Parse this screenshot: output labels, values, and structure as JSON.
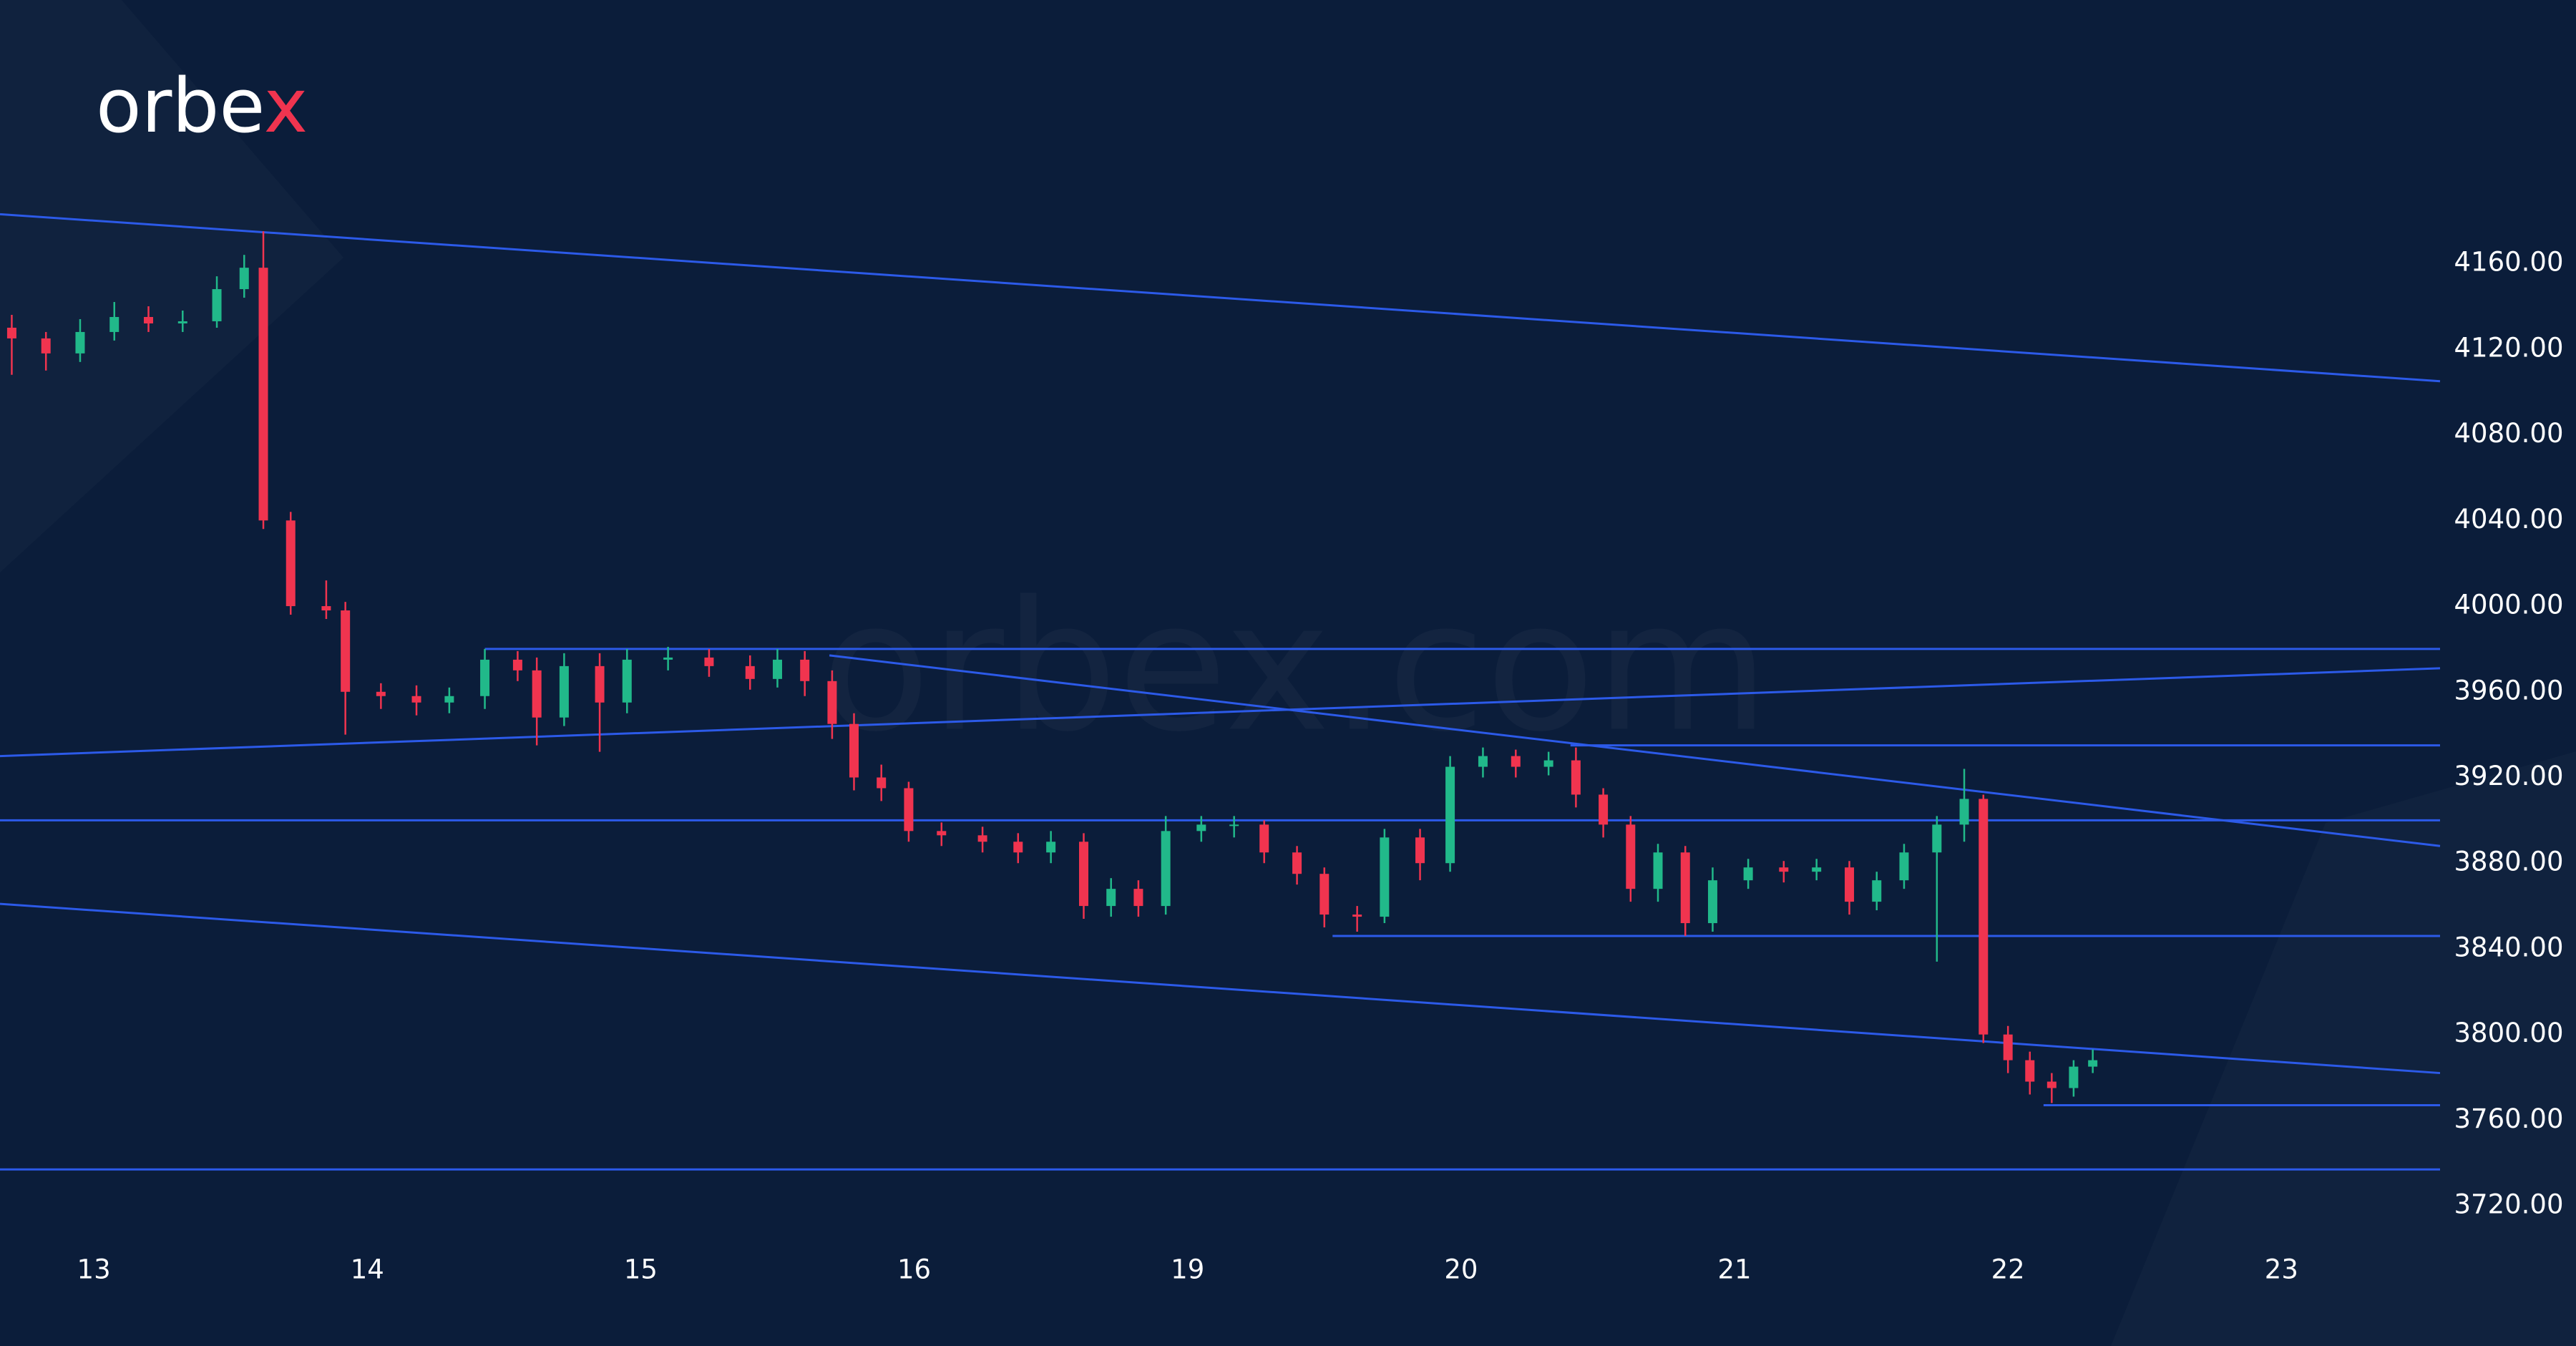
{
  "logo_main": "orbe",
  "logo_accent": "x",
  "watermark": "orbex.com",
  "chart_data": {
    "type": "candlestick",
    "up_color": "#21b98a",
    "down_color": "#f0344f",
    "line_color": "#2c5ae8",
    "xlim": [
      -0.343,
      8.58
    ],
    "ylim": [
      3700,
      4283
    ],
    "xticks": [
      {
        "value": 0,
        "label": "13"
      },
      {
        "value": 1,
        "label": "14"
      },
      {
        "value": 2,
        "label": "15"
      },
      {
        "value": 3,
        "label": "16"
      },
      {
        "value": 4,
        "label": "19"
      },
      {
        "value": 5,
        "label": "20"
      },
      {
        "value": 6,
        "label": "21"
      },
      {
        "value": 7,
        "label": "22"
      },
      {
        "value": 8,
        "label": "23"
      }
    ],
    "yticks": [
      {
        "value": 3720,
        "label": "3720.00"
      },
      {
        "value": 3760,
        "label": "3760.00"
      },
      {
        "value": 3800,
        "label": "3800.00"
      },
      {
        "value": 3840,
        "label": "3840.00"
      },
      {
        "value": 3880,
        "label": "3880.00"
      },
      {
        "value": 3920,
        "label": "3920.00"
      },
      {
        "value": 3960,
        "label": "3960.00"
      },
      {
        "value": 4000,
        "label": "4000.00"
      },
      {
        "value": 4040,
        "label": "4040.00"
      },
      {
        "value": 4080,
        "label": "4080.00"
      },
      {
        "value": 4120,
        "label": "4120.00"
      },
      {
        "value": 4160,
        "label": "4160.00"
      }
    ],
    "x": [
      -0.3,
      -0.175,
      -0.05,
      0.075,
      0.2,
      0.325,
      0.45,
      0.55,
      0.62,
      0.72,
      0.85,
      0.92,
      1.05,
      1.18,
      1.3,
      1.43,
      1.55,
      1.62,
      1.72,
      1.85,
      1.95,
      2.1,
      2.25,
      2.4,
      2.5,
      2.6,
      2.7,
      2.78,
      2.88,
      2.98,
      3.1,
      3.25,
      3.38,
      3.5,
      3.62,
      3.72,
      3.82,
      3.92,
      4.05,
      4.17,
      4.28,
      4.4,
      4.5,
      4.62,
      4.72,
      4.85,
      4.96,
      5.08,
      5.2,
      5.32,
      5.42,
      5.52,
      5.62,
      5.72,
      5.82,
      5.92,
      6.05,
      6.18,
      6.3,
      6.42,
      6.52,
      6.62,
      6.74,
      6.84,
      6.91,
      7.0,
      7.08,
      7.16,
      7.24,
      7.31
    ],
    "open": [
      4130,
      4125,
      4118,
      4128,
      4135,
      4132,
      4133,
      4148,
      4158,
      4040,
      4000,
      3998,
      3960,
      3958,
      3955,
      3958,
      3975,
      3970,
      3948,
      3972,
      3955,
      3975,
      3976,
      3972,
      3966,
      3975,
      3965,
      3945,
      3920,
      3915,
      3895,
      3893,
      3890,
      3885,
      3890,
      3860,
      3868,
      3860,
      3895,
      3898,
      3898,
      3885,
      3875,
      3856,
      3855,
      3892,
      3880,
      3925,
      3930,
      3925,
      3928,
      3912,
      3898,
      3868,
      3885,
      3852,
      3872,
      3878,
      3876,
      3878,
      3862,
      3872,
      3885,
      3898,
      3910,
      3800,
      3788,
      3778,
      3775,
      3785
    ],
    "high": [
      4136,
      4128,
      4134,
      4142,
      4140,
      4138,
      4154,
      4164,
      4175,
      4044,
      4012,
      4002,
      3964,
      3963,
      3962,
      3980,
      3979,
      3976,
      3978,
      3978,
      3980,
      3981,
      3980,
      3977,
      3980,
      3979,
      3970,
      3950,
      3926,
      3918,
      3899,
      3897,
      3894,
      3895,
      3894,
      3873,
      3872,
      3902,
      3902,
      3902,
      3900,
      3888,
      3878,
      3860,
      3896,
      3896,
      3930,
      3934,
      3933,
      3932,
      3934,
      3915,
      3902,
      3889,
      3888,
      3878,
      3882,
      3881,
      3882,
      3881,
      3876,
      3889,
      3902,
      3924,
      3912,
      3804,
      3792,
      3782,
      3788,
      3793
    ],
    "low": [
      4108,
      4110,
      4114,
      4124,
      4128,
      4128,
      4130,
      4144,
      4036,
      3996,
      3994,
      3940,
      3952,
      3949,
      3950,
      3952,
      3965,
      3935,
      3944,
      3932,
      3950,
      3970,
      3967,
      3961,
      3962,
      3958,
      3938,
      3914,
      3909,
      3890,
      3888,
      3885,
      3880,
      3880,
      3854,
      3855,
      3855,
      3856,
      3890,
      3892,
      3880,
      3870,
      3850,
      3848,
      3852,
      3872,
      3876,
      3920,
      3920,
      3921,
      3906,
      3892,
      3862,
      3862,
      3846,
      3848,
      3868,
      3871,
      3872,
      3856,
      3858,
      3868,
      3834,
      3890,
      3796,
      3782,
      3772,
      3768,
      3771,
      3782
    ],
    "close": [
      4125,
      4118,
      4128,
      4135,
      4132,
      4133,
      4148,
      4158,
      4040,
      4000,
      3998,
      3960,
      3958,
      3955,
      3958,
      3975,
      3970,
      3948,
      3972,
      3955,
      3975,
      3976,
      3972,
      3966,
      3975,
      3965,
      3945,
      3920,
      3915,
      3895,
      3893,
      3890,
      3885,
      3890,
      3860,
      3868,
      3860,
      3895,
      3898,
      3898,
      3885,
      3875,
      3856,
      3855,
      3892,
      3880,
      3925,
      3930,
      3925,
      3928,
      3912,
      3898,
      3868,
      3885,
      3852,
      3872,
      3878,
      3876,
      3878,
      3862,
      3872,
      3885,
      3898,
      3910,
      3800,
      3788,
      3778,
      3775,
      3785,
      3788
    ],
    "trendlines": [
      {
        "x": [
          -0.343,
          8.58
        ],
        "y": [
          4183,
          4105
        ]
      },
      {
        "x": [
          -0.343,
          8.58
        ],
        "y": [
          3861,
          3782
        ]
      },
      {
        "x": [
          -0.343,
          8.58
        ],
        "y": [
          3930,
          3971
        ]
      },
      {
        "x": [
          1.43,
          8.58
        ],
        "y": [
          3980,
          3980
        ]
      },
      {
        "x": [
          2.69,
          8.58
        ],
        "y": [
          3977,
          3888
        ]
      },
      {
        "x": [
          5.4,
          8.58
        ],
        "y": [
          3935,
          3935
        ]
      },
      {
        "x": [
          -0.343,
          8.58
        ],
        "y": [
          3900,
          3900
        ]
      },
      {
        "x": [
          4.53,
          8.58
        ],
        "y": [
          3846,
          3846
        ]
      },
      {
        "x": [
          7.13,
          8.58
        ],
        "y": [
          3767,
          3767
        ]
      },
      {
        "x": [
          -0.343,
          8.58
        ],
        "y": [
          3737,
          3737
        ]
      }
    ]
  }
}
